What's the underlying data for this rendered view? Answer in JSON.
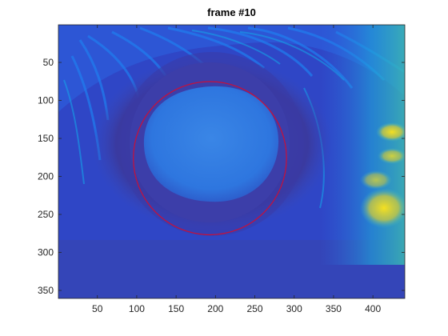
{
  "title": "frame #10",
  "image": {
    "x_range": [
      1,
      440
    ],
    "y_range": [
      1,
      360
    ],
    "colormap": "parula",
    "x_ticks": [
      50,
      100,
      150,
      200,
      250,
      300,
      350,
      400
    ],
    "y_ticks": [
      50,
      100,
      150,
      200,
      250,
      300,
      350
    ],
    "circle": {
      "cx": 193,
      "cy": 176,
      "r": 99,
      "color": "#c8103a"
    }
  }
}
